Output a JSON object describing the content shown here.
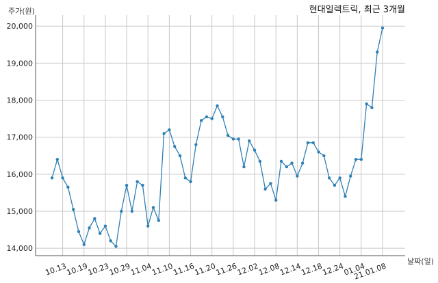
{
  "chart_data": {
    "type": "line",
    "title": "현대일렉트릭, 최근 3개월",
    "ylabel": "주가(원)",
    "xlabel": "날짜(일)",
    "ylim": [
      13800,
      20300
    ],
    "yticks": [
      14000,
      15000,
      16000,
      17000,
      18000,
      19000,
      20000
    ],
    "ytick_labels": [
      "14,000",
      "15,000",
      "16,000",
      "17,000",
      "18,000",
      "19,000",
      "20,000"
    ],
    "xtick_labels": [
      "10.13",
      "10.19",
      "10.23",
      "10.29",
      "11.04",
      "11.10",
      "11.16",
      "11.20",
      "11.26",
      "12.02",
      "12.08",
      "12.14",
      "12.18",
      "12.24",
      "01.04",
      "21.01.08"
    ],
    "xtick_index": [
      2,
      6,
      10,
      14,
      18,
      22,
      26,
      30,
      34,
      38,
      42,
      46,
      50,
      54,
      58,
      62
    ],
    "grid": true,
    "line_color": "#2e7fb5",
    "series": [
      {
        "values": [
          15900,
          16400,
          15900,
          15650,
          15050,
          14450,
          14100,
          14550,
          14800,
          14400,
          14600,
          14200,
          14050,
          15000,
          15700,
          15000,
          15800,
          15700,
          14600,
          15100,
          14750,
          17100,
          17200,
          16750,
          16500,
          15900,
          15800,
          16800,
          17450,
          17550,
          17500,
          17850,
          17550,
          17050,
          16950,
          16950,
          16200,
          16900,
          16650,
          16350,
          15600,
          15750,
          15300,
          16350,
          16200,
          16300,
          15950,
          16300,
          16850,
          16850,
          16600,
          16500,
          15900,
          15700,
          15900,
          15400,
          15950,
          16400,
          16400,
          17900,
          17800,
          19300,
          19950
        ]
      }
    ]
  }
}
